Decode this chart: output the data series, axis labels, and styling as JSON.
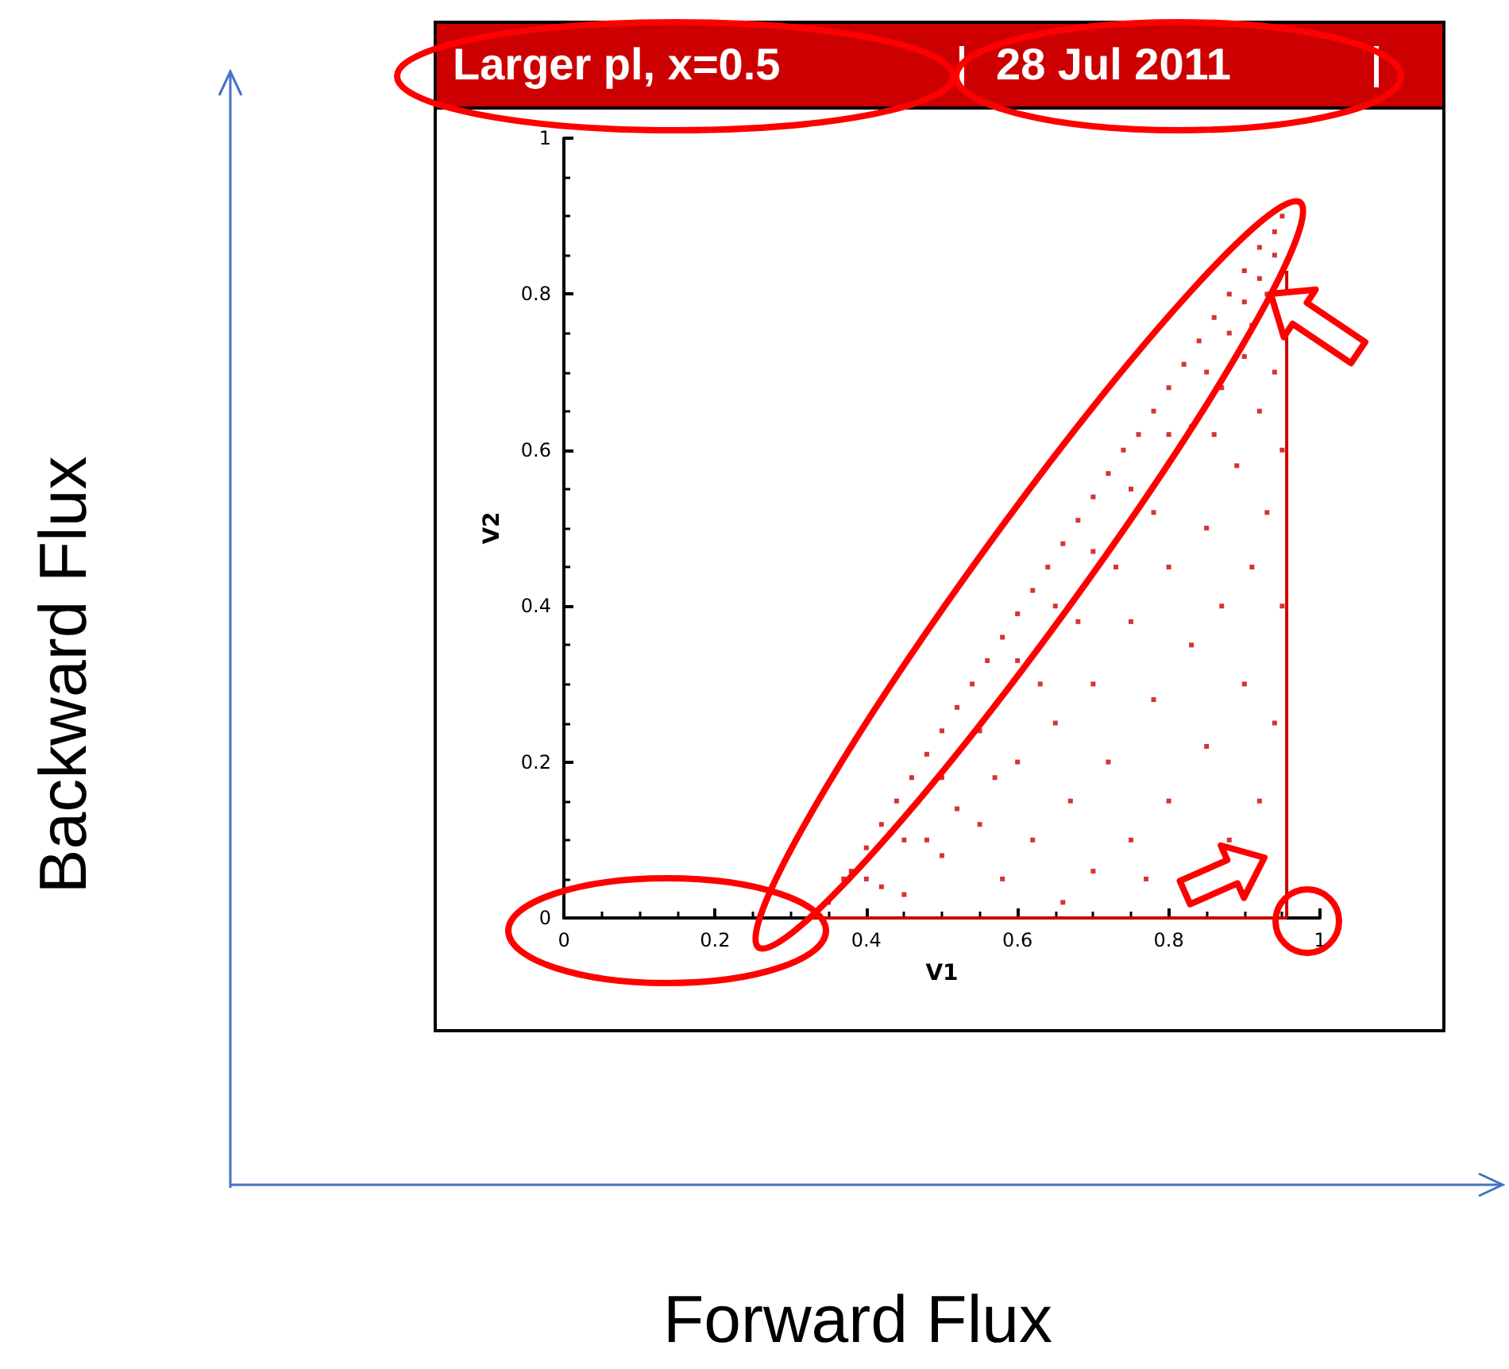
{
  "chart_data": {
    "type": "scatter",
    "title": "Larger pl, x=0.5",
    "subtitle": "28 Jul 2011",
    "xlabel": "V1",
    "ylabel": "V2",
    "annotations": [
      "Forward Flux",
      "Backward Flux"
    ],
    "xlim": [
      0,
      1
    ],
    "ylim": [
      0,
      1
    ],
    "xticks": [
      0,
      0.2,
      0.4,
      0.6,
      0.8,
      1
    ],
    "yticks": [
      0,
      0.2,
      0.4,
      0.6,
      0.8,
      1
    ],
    "grid": false,
    "marker": "square",
    "series": [
      {
        "color": "#cc0000",
        "x": [
          0.35,
          0.37,
          0.38,
          0.4,
          0.42,
          0.44,
          0.46,
          0.48,
          0.5,
          0.52,
          0.54,
          0.56,
          0.58,
          0.6,
          0.62,
          0.64,
          0.66,
          0.68,
          0.7,
          0.72,
          0.74,
          0.76,
          0.78,
          0.8,
          0.82,
          0.84,
          0.86,
          0.88,
          0.9,
          0.92,
          0.94,
          0.95,
          0.4,
          0.45,
          0.5,
          0.55,
          0.6,
          0.65,
          0.7,
          0.75,
          0.8,
          0.85,
          0.88,
          0.9,
          0.92,
          0.94,
          0.93,
          0.91,
          0.87,
          0.83,
          0.45,
          0.5,
          0.55,
          0.58,
          0.6,
          0.62,
          0.65,
          0.67,
          0.7,
          0.7,
          0.72,
          0.75,
          0.75,
          0.78,
          0.8,
          0.8,
          0.82,
          0.83,
          0.85,
          0.85,
          0.87,
          0.88,
          0.89,
          0.9,
          0.91,
          0.92,
          0.92,
          0.93,
          0.94,
          0.94,
          0.95,
          0.95,
          0.68,
          0.73,
          0.78,
          0.63,
          0.57,
          0.52,
          0.48,
          0.42,
          0.86,
          0.9,
          0.77,
          0.66
        ],
        "values": [
          0.02,
          0.05,
          0.06,
          0.09,
          0.12,
          0.15,
          0.18,
          0.21,
          0.24,
          0.27,
          0.3,
          0.33,
          0.36,
          0.39,
          0.42,
          0.45,
          0.48,
          0.51,
          0.54,
          0.57,
          0.6,
          0.62,
          0.65,
          0.68,
          0.71,
          0.74,
          0.77,
          0.8,
          0.83,
          0.86,
          0.88,
          0.9,
          0.05,
          0.1,
          0.18,
          0.24,
          0.33,
          0.4,
          0.47,
          0.55,
          0.62,
          0.7,
          0.75,
          0.79,
          0.82,
          0.85,
          0.8,
          0.76,
          0.68,
          0.63,
          0.03,
          0.08,
          0.12,
          0.05,
          0.2,
          0.1,
          0.25,
          0.15,
          0.3,
          0.06,
          0.2,
          0.38,
          0.1,
          0.28,
          0.45,
          0.15,
          0.05,
          0.35,
          0.5,
          0.22,
          0.4,
          0.1,
          0.58,
          0.3,
          0.45,
          0.65,
          0.15,
          0.52,
          0.7,
          0.25,
          0.4,
          0.6,
          0.38,
          0.45,
          0.52,
          0.3,
          0.18,
          0.14,
          0.1,
          0.04,
          0.62,
          0.72,
          0.05,
          0.02
        ]
      },
      {
        "type": "line",
        "color": "#cc0000",
        "marker": "none",
        "x": [
          0.33,
          0.956
        ],
        "values": [
          0,
          0
        ]
      },
      {
        "type": "line",
        "color": "#cc0000",
        "marker": "none",
        "x": [
          0.956,
          0.956
        ],
        "values": [
          0,
          0.83
        ]
      }
    ]
  }
}
